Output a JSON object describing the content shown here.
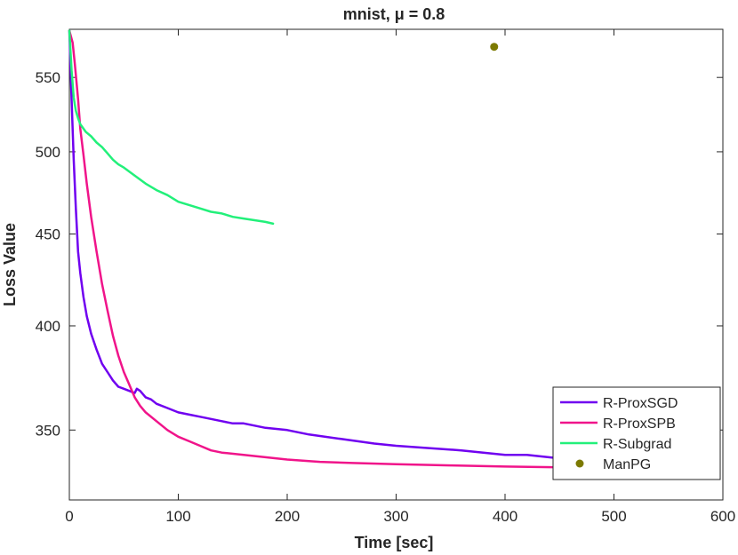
{
  "chart_data": {
    "type": "line",
    "title": "mnist, μ = 0.8",
    "xlabel": "Time [sec]",
    "ylabel": "Loss Value",
    "xlim": [
      0,
      600
    ],
    "ylim": [
      320,
      585
    ],
    "y_scale": "log",
    "grid": false,
    "legend_position": "bottom-right",
    "xticks": [
      0,
      100,
      200,
      300,
      400,
      500,
      600
    ],
    "yticks": [
      350,
      400,
      450,
      500,
      550
    ],
    "series": [
      {
        "name": "R-ProxSGD",
        "color": "#7000F0",
        "style": "line",
        "x": [
          0,
          2,
          4,
          6,
          8,
          10,
          13,
          16,
          20,
          25,
          30,
          35,
          40,
          45,
          50,
          55,
          60,
          62,
          65,
          70,
          75,
          80,
          90,
          100,
          110,
          120,
          130,
          140,
          150,
          160,
          170,
          180,
          200,
          220,
          250,
          280,
          300,
          330,
          360,
          380,
          400,
          420,
          440,
          460
        ],
        "y": [
          584,
          535,
          495,
          465,
          440,
          428,
          415,
          405,
          396,
          388,
          381,
          377,
          373,
          370,
          369,
          368,
          367,
          369,
          368,
          365,
          364,
          362,
          360,
          358,
          357,
          356,
          355,
          354,
          353,
          353,
          352,
          351,
          350,
          348,
          346,
          344,
          343,
          342,
          341,
          340,
          339,
          339,
          338,
          337
        ]
      },
      {
        "name": "R-ProxSPB",
        "color": "#F0148A",
        "style": "line",
        "x": [
          0,
          3,
          5,
          8,
          10,
          13,
          16,
          20,
          25,
          30,
          35,
          40,
          45,
          50,
          55,
          60,
          65,
          70,
          80,
          90,
          100,
          110,
          120,
          130,
          140,
          160,
          180,
          200,
          230,
          260,
          300,
          350,
          400,
          450,
          495
        ],
        "y": [
          584,
          575,
          560,
          535,
          515,
          498,
          480,
          460,
          440,
          422,
          408,
          395,
          385,
          377,
          371,
          365,
          361,
          358,
          354,
          350,
          347,
          345,
          343,
          341,
          340,
          339,
          338,
          337,
          336,
          335.5,
          335,
          334.5,
          334,
          333.7,
          333.5
        ]
      },
      {
        "name": "R-Subgrad",
        "color": "#22F07A",
        "style": "line",
        "x": [
          0,
          2,
          4,
          6,
          8,
          10,
          15,
          20,
          25,
          30,
          35,
          40,
          45,
          50,
          60,
          70,
          80,
          90,
          100,
          110,
          120,
          130,
          140,
          150,
          160,
          170,
          180,
          187
        ],
        "y": [
          584,
          555,
          536,
          527,
          522,
          518,
          513,
          510,
          506,
          503,
          499,
          495,
          492,
          490,
          485,
          480,
          476,
          473,
          469,
          467,
          465,
          463,
          462,
          460,
          459,
          458,
          457,
          456
        ]
      },
      {
        "name": "ManPG",
        "color": "#7C7A00",
        "style": "marker",
        "x": [
          390
        ],
        "y": [
          572
        ]
      }
    ]
  }
}
